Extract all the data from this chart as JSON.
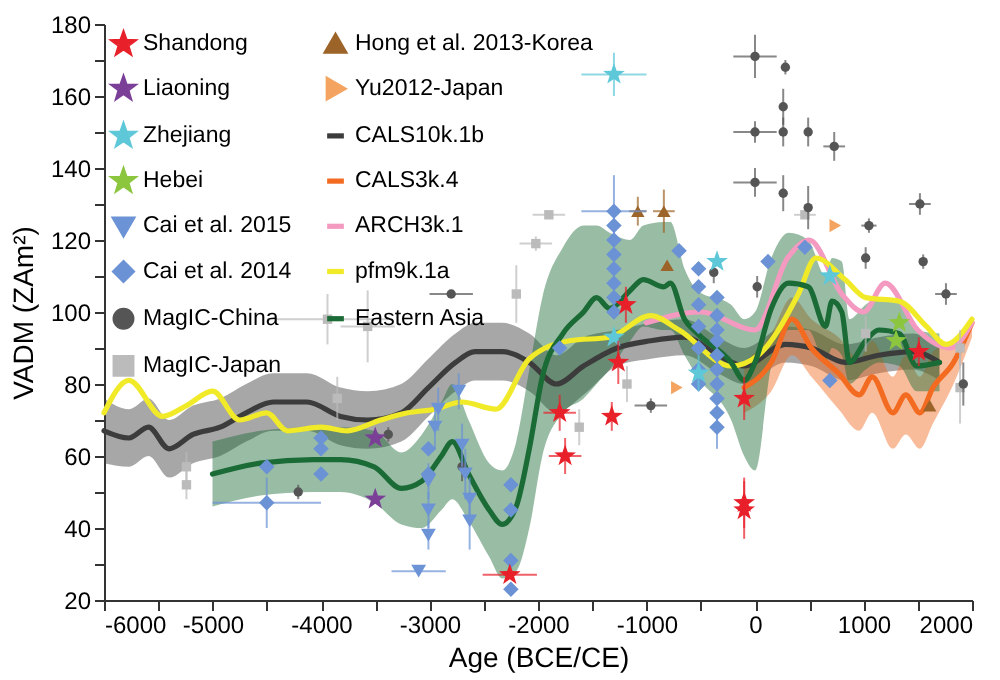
{
  "chart_data": {
    "type": "scatter",
    "xlabel": "Age (BCE/CE)",
    "ylabel": "VADM (ZAm²)",
    "legend": "top left",
    "xlim": [
      -6000,
      2000
    ],
    "ylim": [
      20,
      180
    ],
    "xticks": [
      -6000,
      {
        "value": -5500,
        "label": null
      },
      -5000,
      {
        "value": -4500,
        "label": null
      },
      -4000,
      {
        "value": -3500,
        "label": null
      },
      -3000,
      {
        "value": -2500,
        "label": null
      },
      -2000,
      {
        "value": -1500,
        "label": null
      },
      -1000,
      {
        "value": -500,
        "label": null
      },
      0,
      {
        "value": 500,
        "label": null
      },
      1000,
      {
        "value": 1500,
        "label": null
      },
      2000
    ],
    "yticks": [
      20,
      {
        "value": 30,
        "label": null
      },
      40,
      {
        "value": 50,
        "label": null
      },
      60,
      {
        "value": 70,
        "label": null
      },
      80,
      {
        "value": 90,
        "label": null
      },
      100,
      {
        "value": 110,
        "label": null
      },
      120,
      {
        "value": 130,
        "label": null
      },
      140,
      {
        "value": 150,
        "label": null
      },
      160,
      {
        "value": 170,
        "label": null
      },
      180
    ],
    "series": [
      {
        "name": "Shandong",
        "marker": "star",
        "color": "#e8202a",
        "x": [
          -2260,
          -1800,
          -1750,
          -1320,
          -1260,
          -1190,
          -100,
          -100,
          -100,
          1510
        ],
        "values": [
          27,
          72,
          60,
          71,
          86,
          102,
          76,
          47,
          45,
          89
        ],
        "errors": [
          null,
          5,
          5,
          4,
          6,
          5,
          6,
          7,
          8,
          4
        ],
        "xerrors": [
          250,
          150,
          150,
          null,
          null,
          null,
          null,
          null,
          null,
          null
        ]
      },
      {
        "name": "Liaoning",
        "marker": "star",
        "color": "#7b3f98",
        "x": [
          -3500,
          -3500
        ],
        "values": [
          65,
          48
        ]
      },
      {
        "name": "Zhejiang",
        "marker": "star",
        "color": "#5ec8d8",
        "x": [
          -1300,
          -1300,
          -350,
          -520,
          690
        ],
        "values": [
          166,
          93,
          114,
          83,
          110
        ],
        "errors": [
          6,
          null,
          null,
          5,
          null
        ],
        "xerrors": [
          300,
          null,
          null,
          null,
          null
        ]
      },
      {
        "name": "Hebei",
        "marker": "star",
        "color": "#8cc63f",
        "x": [
          1330,
          1300
        ],
        "values": [
          97,
          92
        ]
      },
      {
        "name": "Cai et al. 2015",
        "marker": "triangle-down",
        "color": "#6b93d6",
        "x": [
          -3100,
          -3010,
          -3010,
          -3010,
          -2950,
          -2920,
          -2730,
          -2700,
          -2670,
          -2630,
          -2630
        ],
        "values": [
          28,
          38,
          45,
          53,
          68,
          73,
          78,
          63,
          55,
          48,
          42
        ],
        "errors": [
          null,
          4,
          5,
          5,
          6,
          6,
          5,
          6,
          7,
          6,
          8
        ],
        "xerrors": [
          250,
          null,
          null,
          null,
          null,
          null,
          null,
          null,
          null,
          null,
          null
        ]
      },
      {
        "name": "Cai et al. 2014",
        "marker": "diamond",
        "color": "#6a92d4",
        "x": [
          -4500,
          -4500,
          -4000,
          -4000,
          -4000,
          -3010,
          -3010,
          -2250,
          -2250,
          -2250,
          -2250,
          -1800,
          -1300,
          -1300,
          -1300,
          -1300,
          -1300,
          -1300,
          -1300,
          -1300,
          -700,
          -520,
          -520,
          -520,
          -520,
          -520,
          -520,
          -520,
          -350,
          -350,
          -350,
          -350,
          -350,
          -350,
          -350,
          -350,
          -350,
          -350,
          120,
          460,
          690
        ],
        "values": [
          47,
          57,
          55,
          62,
          65,
          55,
          62,
          52,
          45,
          31,
          23,
          90,
          128,
          124,
          120,
          116,
          112,
          108,
          104,
          100,
          117,
          112,
          107,
          102,
          96,
          90,
          84,
          80,
          104,
          99,
          95,
          92,
          88,
          84,
          80,
          76,
          72,
          68,
          114,
          118,
          81
        ],
        "errors": [
          7,
          null,
          null,
          null,
          null,
          null,
          null,
          null,
          null,
          null,
          null,
          null,
          10,
          null,
          null,
          null,
          null,
          null,
          null,
          null,
          null,
          null,
          null,
          null,
          null,
          null,
          null,
          null,
          null,
          null,
          null,
          null,
          null,
          null,
          null,
          null,
          null,
          6,
          null,
          null,
          null
        ],
        "xerrors": [
          500,
          null,
          null,
          null,
          null,
          null,
          null,
          null,
          null,
          null,
          null,
          null,
          300,
          null,
          null,
          null,
          null,
          null,
          null,
          null,
          null,
          null,
          null,
          null,
          null,
          null,
          null,
          null,
          null,
          null,
          null,
          null,
          null,
          null,
          null,
          null,
          null,
          null,
          null,
          null,
          null
        ]
      },
      {
        "name": "MagIC-China",
        "marker": "circle",
        "color": "#555555",
        "x": [
          0,
          280,
          0,
          0,
          260,
          260,
          490,
          730,
          260,
          490,
          1520,
          1050,
          1550,
          1020,
          1760,
          20,
          -380,
          -2800,
          -960,
          -4210,
          -3380,
          -2700,
          1920
        ],
        "values": [
          171,
          168,
          150,
          136,
          157,
          150,
          150,
          146,
          133,
          129,
          130,
          124,
          114,
          115,
          105,
          107,
          111,
          105,
          74,
          50,
          66,
          57,
          80
        ],
        "errors": [
          6,
          2,
          3,
          4,
          5,
          4,
          4,
          4,
          5,
          6,
          3,
          2,
          2,
          3,
          3,
          3,
          3,
          1,
          2,
          2,
          2,
          4,
          6
        ],
        "xerrors": [
          200,
          null,
          200,
          200,
          null,
          null,
          null,
          100,
          null,
          null,
          100,
          70,
          null,
          null,
          100,
          null,
          null,
          200,
          150,
          null,
          null,
          null,
          null
        ]
      },
      {
        "name": "MagIC-Japan",
        "marker": "square",
        "color": "#bbbbbb",
        "x": [
          -3940,
          -3570,
          -2020,
          -2200,
          -1900,
          -3850,
          -5240,
          -5240,
          -1620,
          -1180,
          460,
          1020,
          1890,
          1890
        ],
        "values": [
          98,
          96,
          119,
          105,
          127,
          76,
          57,
          52,
          68,
          80,
          127,
          94,
          90,
          79
        ],
        "errors": [
          7,
          10,
          2,
          8,
          null,
          6,
          4,
          4,
          5,
          5,
          null,
          5,
          5,
          10
        ],
        "xerrors": [
          560,
          250,
          150,
          null,
          150,
          null,
          null,
          null,
          null,
          null,
          100,
          null,
          null,
          null
        ]
      },
      {
        "name": "Hong et al. 2013-Korea",
        "marker": "triangle",
        "color": "#9c6428",
        "x": [
          -1080,
          -840,
          -810,
          1610
        ],
        "values": [
          128,
          128,
          113,
          74
        ],
        "errors": [
          4,
          6,
          null,
          null
        ],
        "xerrors": [
          80,
          100,
          null,
          null
        ]
      },
      {
        "name": "Yu2012-Japan",
        "marker": "triangle-right",
        "color": "#f4a460",
        "x": [
          -720,
          740
        ],
        "values": [
          79,
          124
        ]
      },
      {
        "name": "CALS10k.1b",
        "type": "line",
        "color": "#3c3c3c",
        "x": [
          -6000,
          -5770,
          -5590,
          -5400,
          -5180,
          -4930,
          -4690,
          -4440,
          -4130,
          -3820,
          -3570,
          -3260,
          -3010,
          -2760,
          -2580,
          -2330,
          -2080,
          -1830,
          -1580,
          -1270,
          -960,
          -650,
          -340,
          -100,
          280,
          520,
          830,
          1140,
          1450,
          1700
        ],
        "values": [
          67,
          65,
          68,
          62,
          66,
          68,
          72,
          75,
          75,
          71,
          70,
          72,
          79,
          86,
          89,
          89,
          86,
          80,
          85,
          90,
          92,
          93,
          88,
          85,
          91,
          90,
          86,
          88,
          89,
          86
        ],
        "lower": [
          58,
          57,
          60,
          54,
          58,
          60,
          64,
          67,
          67,
          63,
          62,
          64,
          71,
          78,
          81,
          81,
          78,
          72,
          77,
          85,
          87,
          88,
          83,
          80,
          86,
          85,
          81,
          83,
          84,
          81
        ],
        "upper": [
          76,
          73,
          76,
          70,
          74,
          76,
          80,
          83,
          83,
          79,
          78,
          80,
          87,
          94,
          97,
          97,
          94,
          88,
          93,
          95,
          97,
          98,
          93,
          90,
          96,
          95,
          91,
          93,
          94,
          91
        ]
      },
      {
        "name": "CALS3k.4",
        "type": "line",
        "color": "#f26b21",
        "x": [
          -100,
          150,
          340,
          520,
          770,
          960,
          1080,
          1270,
          1390,
          1520,
          1640,
          1830,
          2000
        ],
        "values": [
          79,
          86,
          98,
          90,
          83,
          77,
          82,
          72,
          77,
          72,
          79,
          86,
          97
        ],
        "lower": [
          72,
          78,
          88,
          82,
          73,
          67,
          72,
          62,
          66,
          62,
          69,
          80,
          93
        ],
        "upper": [
          86,
          94,
          104,
          98,
          93,
          87,
          92,
          82,
          88,
          82,
          89,
          92,
          99
        ]
      },
      {
        "name": "ARCH3k.1",
        "type": "line",
        "color": "#f49ac1",
        "x": [
          -1000,
          -500,
          0,
          300,
          500,
          800,
          1000,
          1200,
          1500,
          1800,
          2000
        ],
        "values": [
          97,
          100,
          95,
          115,
          120,
          105,
          100,
          108,
          95,
          90,
          97
        ]
      },
      {
        "name": "pfm9k.1a",
        "type": "line",
        "color": "#f0ea29",
        "x": [
          -6000,
          -5770,
          -5460,
          -5240,
          -5000,
          -4750,
          -4500,
          -4310,
          -4000,
          -3760,
          -3450,
          -3200,
          -2950,
          -2700,
          -2390,
          -2080,
          -1710,
          -1340,
          -960,
          -700,
          -220,
          30,
          400,
          560,
          830,
          1020,
          1330,
          1580,
          1760,
          2000
        ],
        "values": [
          72,
          81,
          71,
          74,
          78,
          70,
          72,
          67,
          68,
          67,
          70,
          72,
          73,
          75,
          73,
          87,
          92,
          93,
          99,
          95,
          85,
          88,
          105,
          115,
          109,
          104,
          103,
          96,
          91,
          98
        ]
      },
      {
        "name": "Eastern Asia",
        "type": "line",
        "color": "#1a6b35",
        "x": [
          -5000,
          -4560,
          -4070,
          -3820,
          -3510,
          -3260,
          -3070,
          -2890,
          -2790,
          -2640,
          -2450,
          -2330,
          -2200,
          -2080,
          -1960,
          -1770,
          -1580,
          -1460,
          -1340,
          -1150,
          -1030,
          -840,
          -780,
          -650,
          -530,
          -220,
          -100,
          0,
          150,
          310,
          490,
          650,
          710,
          800,
          870,
          1020,
          1140,
          1330,
          1490,
          1700
        ],
        "values": [
          55,
          58,
          59,
          59,
          57,
          51,
          53,
          60,
          64,
          55,
          45,
          41,
          46,
          62,
          82,
          94,
          100,
          104,
          101,
          106,
          109,
          107,
          108,
          98,
          94,
          86,
          81,
          86,
          101,
          108,
          107,
          96,
          103,
          100,
          86,
          92,
          95,
          94,
          85,
          86
        ],
        "lower": [
          46,
          49,
          50,
          50,
          47,
          41,
          40,
          45,
          48,
          42,
          32,
          26,
          28,
          40,
          60,
          72,
          76,
          80,
          84,
          92,
          96,
          95,
          95,
          88,
          82,
          70,
          60,
          56,
          85,
          95,
          95,
          86,
          90,
          88,
          80,
          84,
          86,
          85,
          78,
          78
        ],
        "upper": [
          64,
          67,
          68,
          68,
          67,
          61,
          66,
          75,
          80,
          70,
          58,
          56,
          64,
          84,
          104,
          118,
          124,
          124,
          122,
          120,
          124,
          125,
          125,
          112,
          106,
          102,
          98,
          100,
          115,
          122,
          120,
          110,
          115,
          114,
          98,
          102,
          104,
          103,
          95,
          94
        ]
      }
    ]
  }
}
